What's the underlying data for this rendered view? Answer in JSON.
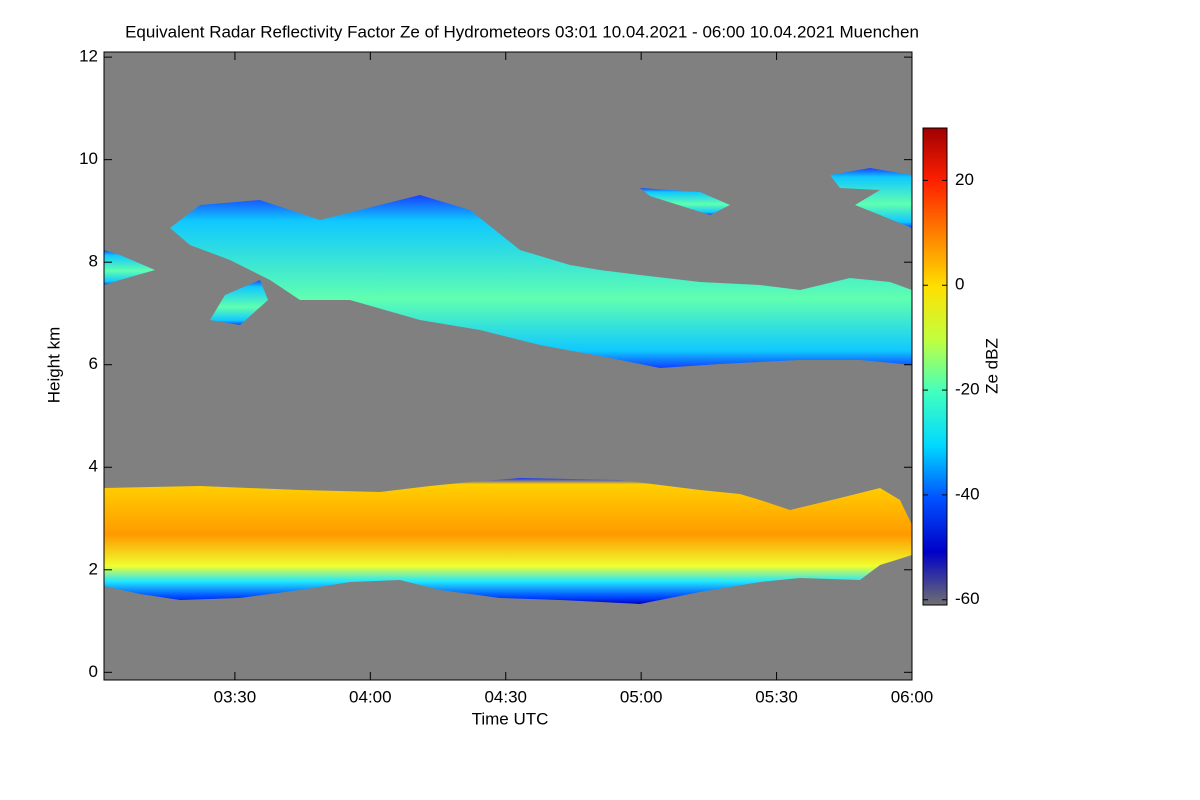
{
  "chart_data": {
    "type": "heatmap",
    "title": "Equivalent Radar Reflectivity Factor Ze of Hydrometeors   03:01 10.04.2021 - 06:00 10.04.2021 Muenchen",
    "x_label": "Time UTC",
    "y_label": "Height km",
    "xlim": [
      "03:01",
      "06:00"
    ],
    "xticks": [
      "03:30",
      "04:00",
      "04:30",
      "05:00",
      "05:30",
      "06:00"
    ],
    "ylim": [
      -0.15,
      12.1
    ],
    "yticks": [
      0,
      2,
      4,
      6,
      8,
      10,
      12
    ],
    "background": "#808080",
    "colorbar_label": "Ze dBZ",
    "clim": [
      -61,
      30
    ],
    "cticks": [
      -60,
      -40,
      -20,
      0,
      20
    ],
    "colormap": [
      "#707070",
      "#0000c8",
      "#0050ff",
      "#00d8ff",
      "#40ffc0",
      "#c0ff40",
      "#ffe000",
      "#ff8000",
      "#ff2000",
      "#a00000"
    ]
  }
}
